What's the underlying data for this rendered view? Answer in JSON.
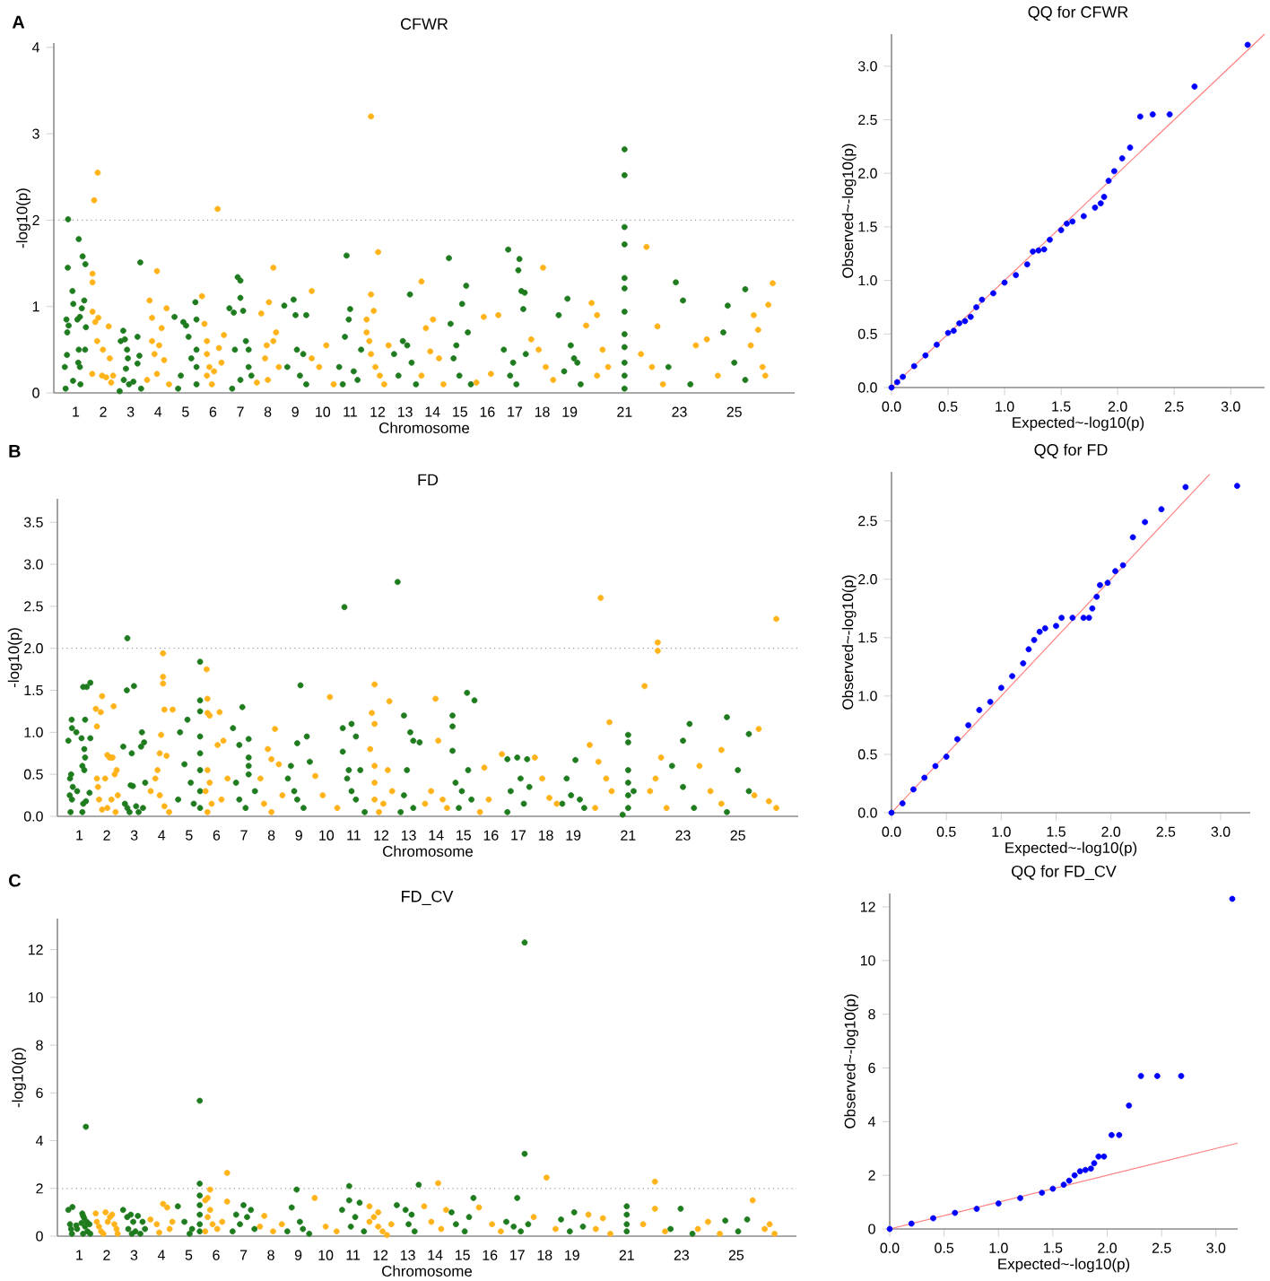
{
  "chart_data": [
    {
      "type": "scatter",
      "title": "CFWR",
      "xlabel": "Chromosome",
      "ylabel": "-log10(p)",
      "annotations": [
        "A"
      ],
      "xlim": [
        0.2,
        27.2
      ],
      "ylim": [
        0,
        4.05
      ],
      "xticks": [
        1,
        2,
        3,
        4,
        5,
        6,
        7,
        8,
        9,
        10,
        11,
        12,
        13,
        14,
        15,
        16,
        17,
        18,
        19,
        21,
        23,
        25
      ],
      "yticks": [
        0,
        1,
        2,
        3,
        4
      ],
      "ref_lines": [
        {
          "axis": "y",
          "value": 2,
          "color": "#999999",
          "line_style": "dotted"
        }
      ],
      "series": [
        {
          "color": "#1e7b1e",
          "x": [
            0.72,
            0.71,
            0.88,
            0.91,
            0.66,
            0.69,
            0.74,
            0.6,
            0.68,
            0.9,
            0.63,
            1.11,
            1.06,
            1.15,
            1.22,
            1.25,
            1.31,
            1.35,
            1.37,
            1.34,
            1.11,
            1.15,
            1.17,
            1.09,
            2.64,
            2.73,
            2.79,
            2.87,
            2.9,
            2.75,
            2.83,
            2.94,
            3.1,
            3.25,
            3.35,
            3.32,
            3.25,
            3.38,
            2.6,
            4.6,
            4.92,
            5.02,
            5.11,
            5.21,
            5.36,
            5.4,
            5.4,
            5.4,
            5.4,
            4.83,
            4.73,
            6.6,
            6.76,
            6.9,
            7.0,
            7.0,
            7.1,
            7.2,
            7.3,
            7.3,
            7.0,
            6.8,
            7.4,
            6.7,
            8.6,
            8.94,
            9.4,
            9.01,
            9.06,
            9.29,
            9.17,
            9.4,
            8.71,
            10.87,
            11.0,
            10.95,
            10.81,
            10.6,
            11.13,
            11.27,
            10.73,
            11.4,
            13.18,
            12.6,
            12.92,
            13.24,
            12.76,
            13.4,
            13.08,
            14.6,
            15.08,
            15.23,
            14.87,
            14.77,
            15.29,
            14.66,
            14.98,
            15.4,
            16.76,
            17.17,
            17.13,
            17.24,
            17.36,
            17.31,
            16.6,
            16.83,
            16.94,
            17.4,
            17.06,
            18.6,
            18.92,
            19.04,
            18.8,
            19.16,
            19.28,
            19.4,
            21.0,
            21.0,
            21.0,
            21.0,
            21.0,
            21.0,
            21.0,
            21.0,
            21.0,
            21.0,
            21.0,
            21.0,
            22.87,
            23.13,
            22.6,
            23.4,
            24.76,
            25.4,
            24.6,
            25.0,
            25.4
          ],
          "values": [
            2.01,
            1.45,
            1.18,
            1.03,
            0.85,
            0.7,
            0.78,
            0.3,
            0.44,
            0.14,
            0.05,
            1.78,
            0.85,
            0.88,
            0.98,
            1.58,
            1.07,
            1.49,
            0.76,
            0.5,
            0.5,
            0.3,
            0.1,
            0.35,
            0.6,
            0.72,
            0.62,
            0.5,
            0.4,
            0.15,
            0.28,
            0.1,
            0.13,
            0.65,
            1.51,
            0.43,
            0.34,
            0.05,
            0.02,
            0.88,
            0.82,
            0.78,
            0.65,
            0.4,
            1.05,
            0.85,
            0.5,
            0.3,
            0.1,
            0.2,
            0.05,
            0.98,
            0.93,
            1.34,
            1.3,
            1.1,
            0.95,
            0.6,
            0.5,
            0.3,
            0.15,
            0.5,
            0.2,
            0.05,
            1.01,
            1.08,
            0.9,
            0.9,
            0.5,
            0.45,
            0.2,
            0.1,
            0.3,
            1.59,
            0.97,
            0.85,
            0.65,
            0.3,
            0.25,
            0.15,
            0.1,
            0.5,
            1.14,
            0.45,
            0.6,
            0.35,
            0.2,
            0.1,
            0.55,
            1.56,
            1.03,
            1.24,
            0.55,
            0.4,
            0.7,
            0.8,
            0.2,
            0.1,
            1.66,
            1.55,
            1.42,
            1.18,
            1.16,
            0.97,
            0.5,
            0.2,
            0.35,
            0.45,
            0.1,
            0.9,
            1.09,
            0.55,
            0.25,
            0.4,
            0.35,
            0.1,
            2.82,
            2.52,
            1.92,
            1.72,
            1.33,
            1.21,
            0.94,
            0.68,
            0.53,
            0.35,
            0.2,
            0.05,
            1.28,
            1.07,
            0.3,
            0.1,
            1.01,
            1.2,
            0.7,
            0.35,
            0.15
          ]
        },
        {
          "color": "#ffb31a",
          "x": [
            1.67,
            1.8,
            1.61,
            1.61,
            1.61,
            1.71,
            1.78,
            1.82,
            1.6,
            1.96,
            1.99,
            2.2,
            2.24,
            2.11,
            2.29,
            2.36,
            3.69,
            3.96,
            3.78,
            4.04,
            4.13,
            4.31,
            3.87,
            4.22,
            3.6,
            3.96,
            4.4,
            3.78,
            5.6,
            6.17,
            5.69,
            5.78,
            5.78,
            5.78,
            5.87,
            5.96,
            6.22,
            6.4,
            6.31,
            6.04,
            7.76,
            8.04,
            8.2,
            8.3,
            7.96,
            7.9,
            8.0,
            7.6,
            8.4,
            8.2,
            9.6,
            10.13,
            9.6,
            9.87,
            10.4,
            11.76,
            12.02,
            11.76,
            11.86,
            11.6,
            11.6,
            11.7,
            11.76,
            11.92,
            12.08,
            12.24,
            12.4,
            13.6,
            14.02,
            13.76,
            13.92,
            14.24,
            13.6,
            14.4,
            15.87,
            16.13,
            15.6,
            16.4,
            18.03,
            17.6,
            18.13,
            17.87,
            18.4,
            19.8,
            20.0,
            19.6,
            20.2,
            20.0,
            20.4,
            21.8,
            22.2,
            21.6,
            22.0,
            22.4,
            24.0,
            23.6,
            24.4,
            26.4,
            26.24,
            25.71,
            25.87,
            25.6,
            26.03,
            26.13
          ],
          "values": [
            2.23,
            2.55,
            1.38,
            1.28,
            0.94,
            0.82,
            0.6,
            0.87,
            0.22,
            0.2,
            0.5,
            0.77,
            0.4,
            0.18,
            0.12,
            0.2,
            1.07,
            1.41,
            0.87,
            0.55,
            0.75,
            0.98,
            0.45,
            0.38,
            0.15,
            0.22,
            0.1,
            0.6,
            1.12,
            2.13,
            0.8,
            0.6,
            0.45,
            0.2,
            0.3,
            0.1,
            0.52,
            0.67,
            0.35,
            0.25,
            0.92,
            1.05,
            1.45,
            0.7,
            0.55,
            0.4,
            0.15,
            0.12,
            0.3,
            0.6,
            1.18,
            0.55,
            0.4,
            0.3,
            0.1,
            3.2,
            1.63,
            1.14,
            0.95,
            0.85,
            0.7,
            0.6,
            0.45,
            0.3,
            0.2,
            0.1,
            0.55,
            1.29,
            0.85,
            0.75,
            0.48,
            0.4,
            0.2,
            0.1,
            0.88,
            0.22,
            0.12,
            0.9,
            1.45,
            0.62,
            0.3,
            0.5,
            0.15,
            1.04,
            0.9,
            0.78,
            0.5,
            0.2,
            0.3,
            1.69,
            0.77,
            0.45,
            0.3,
            0.1,
            0.62,
            0.55,
            0.2,
            1.27,
            1.02,
            0.9,
            0.73,
            0.55,
            0.3,
            0.2
          ]
        }
      ]
    },
    {
      "type": "scatter",
      "title": "QQ for CFWR",
      "xlabel": "Expected~-log10(p)",
      "ylabel": "Observed~-log10(p)",
      "xlim": [
        0,
        3.3
      ],
      "ylim": [
        0,
        3.3
      ],
      "xticks": [
        {
          "value": 0,
          "label": "0.0"
        },
        0.5,
        {
          "value": 1,
          "label": "1.0"
        },
        1.5,
        {
          "value": 2,
          "label": "2.0"
        },
        2.5,
        {
          "value": 3,
          "label": "3.0"
        }
      ],
      "yticks": [
        {
          "value": 0,
          "label": "0.0"
        },
        0.5,
        {
          "value": 1,
          "label": "1.0"
        },
        1.5,
        {
          "value": 2,
          "label": "2.0"
        },
        2.5,
        {
          "value": 3,
          "label": "3.0"
        }
      ],
      "series": [
        {
          "type": "line",
          "color": "#ff8080",
          "x": [
            0,
            3.3
          ],
          "values": [
            0,
            3.3
          ]
        },
        {
          "color": "#0000ff",
          "x": [
            0,
            0.05,
            0.1,
            0.2,
            0.3,
            0.4,
            0.5,
            0.55,
            0.6,
            0.65,
            0.7,
            0.75,
            0.8,
            0.9,
            1.0,
            1.1,
            1.2,
            1.25,
            1.3,
            1.35,
            1.4,
            1.5,
            1.55,
            1.6,
            1.7,
            1.8,
            1.85,
            1.88,
            1.92,
            1.97,
            2.04,
            2.11,
            2.2,
            2.31,
            2.46,
            2.68,
            3.15
          ],
          "values": [
            0,
            0.05,
            0.1,
            0.2,
            0.3,
            0.4,
            0.51,
            0.53,
            0.6,
            0.62,
            0.66,
            0.75,
            0.82,
            0.88,
            0.98,
            1.05,
            1.15,
            1.27,
            1.28,
            1.29,
            1.38,
            1.47,
            1.53,
            1.55,
            1.6,
            1.68,
            1.72,
            1.78,
            1.93,
            2.02,
            2.14,
            2.24,
            2.53,
            2.55,
            2.55,
            2.81,
            3.2
          ]
        }
      ]
    },
    {
      "type": "scatter",
      "title": "FD",
      "xlabel": "Chromosome",
      "ylabel": "-log10(p)",
      "annotations": [
        "B"
      ],
      "xlim": [
        0.2,
        27.2
      ],
      "ylim": [
        0,
        3.78
      ],
      "xticks": [
        1,
        2,
        3,
        4,
        5,
        6,
        7,
        8,
        9,
        10,
        11,
        12,
        13,
        14,
        15,
        16,
        17,
        18,
        19,
        21,
        23,
        25
      ],
      "yticks": [
        {
          "value": 0,
          "label": "0.0"
        },
        0.5,
        {
          "value": 1,
          "label": "1.0"
        },
        1.5,
        {
          "value": 2,
          "label": "2.0"
        },
        2.5,
        {
          "value": 3,
          "label": "3.0"
        },
        3.5
      ],
      "ref_lines": [
        {
          "axis": "y",
          "value": 2,
          "color": "#999999",
          "line_style": "dotted"
        }
      ],
      "series": [
        {
          "color": "#1e7b1e",
          "x": [
            0.6,
            0.65,
            0.66,
            0.7,
            0.72,
            0.73,
            0.76,
            0.73,
            0.68,
            0.89,
            0.92,
            1.08,
            1.14,
            1.21,
            1.18,
            1.21,
            1.11,
            1.18,
            1.27,
            1.4,
            1.4,
            1.14,
            1.24,
            1.37,
            1.11,
            2.6,
            2.75,
            2.73,
            2.91,
            2.99,
            2.87,
            2.95,
            2.75,
            2.83,
            2.66,
            3.28,
            3.25,
            3.36,
            3.4,
            3.16,
            3.07,
            3.32,
            4.67,
            4.94,
            5.4,
            5.4,
            5.4,
            5.4,
            5.4,
            5.4,
            5.4,
            5.4,
            4.83,
            5.06,
            5.17,
            4.6,
            6.6,
            6.94,
            6.83,
            7.17,
            7.17,
            7.17,
            7.17,
            6.83,
            7.06,
            6.71,
            7.4,
            8.94,
            9.06,
            9.29,
            9.4,
            8.71,
            8.83,
            8.94,
            9.17,
            8.6,
            10.66,
            10.6,
            10.92,
            11.08,
            10.6,
            10.82,
            11.24,
            10.76,
            10.92,
            11.08,
            11.4,
            12.6,
            12.83,
            13.06,
            13.17,
            13.4,
            12.94,
            12.83,
            13.17,
            12.71,
            14.6,
            14.6,
            15.13,
            15.4,
            14.6,
            14.71,
            14.94,
            14.83,
            15.17,
            15.29,
            16.6,
            16.96,
            17.32,
            16.72,
            17.08,
            17.2,
            16.6,
            17.4,
            19.08,
            18.76,
            18.92,
            19.24,
            19.4,
            18.6,
            21.0,
            21.0,
            21.0,
            21.0,
            21.0,
            21.0,
            21.2,
            20.8,
            23.24,
            23.0,
            22.6,
            23.0,
            23.4,
            24.6,
            25.4,
            25.0,
            25.4,
            24.6
          ],
          "values": [
            0.9,
            0.25,
            0.45,
            0.5,
            1.15,
            1.05,
            0.35,
            0.2,
            0.05,
            1.0,
            0.3,
            0.93,
            1.54,
            1.15,
            0.8,
            0.7,
            0.6,
            0.55,
            1.54,
            1.59,
            0.93,
            0.15,
            0.18,
            0.28,
            0.05,
            0.83,
            2.12,
            1.5,
            0.75,
            1.55,
            0.37,
            0.36,
            0.1,
            0.05,
            0.15,
            1.0,
            0.83,
            0.88,
            0.4,
            0.05,
            0.12,
            0.1,
            1.0,
            1.15,
            1.84,
            1.38,
            1.25,
            0.95,
            0.75,
            0.55,
            0.3,
            0.1,
            0.62,
            0.4,
            0.15,
            0.2,
            1.05,
            1.3,
            0.85,
            0.92,
            0.7,
            0.6,
            0.5,
            0.2,
            0.1,
            0.4,
            0.3,
            0.87,
            1.56,
            0.95,
            0.65,
            0.6,
            0.3,
            0.2,
            0.1,
            0.45,
            2.49,
            1.05,
            1.1,
            0.95,
            0.77,
            0.55,
            0.55,
            0.45,
            0.3,
            0.2,
            0.05,
            2.79,
            1.2,
            1.0,
            0.9,
            0.88,
            0.55,
            0.25,
            0.1,
            0.05,
            1.2,
            1.07,
            1.47,
            1.38,
            0.78,
            0.4,
            0.3,
            0.1,
            0.55,
            0.2,
            0.68,
            0.7,
            0.68,
            0.3,
            0.45,
            0.15,
            0.05,
            0.35,
            0.67,
            0.45,
            0.25,
            0.2,
            0.1,
            0.15,
            0.97,
            0.88,
            0.55,
            0.4,
            0.25,
            0.1,
            0.3,
            0.02,
            1.1,
            0.9,
            0.6,
            0.35,
            0.1,
            1.18,
            0.98,
            0.55,
            0.3,
            0.05
          ]
        },
        {
          "color": "#ffb31a",
          "x": [
            1.6,
            1.64,
            1.78,
            1.83,
            1.64,
            1.68,
            1.72,
            1.94,
            2.02,
            2.1,
            2.17,
            2.21,
            2.25,
            2.29,
            2.36,
            2.17,
            2.32,
            2.02,
            1.83,
            2.4,
            4.05,
            4.05,
            4.05,
            4.1,
            4.4,
            3.98,
            3.93,
            4.18,
            3.85,
            3.77,
            3.93,
            4.1,
            4.27,
            3.6,
            5.64,
            5.67,
            5.67,
            5.75,
            6.11,
            5.67,
            5.75,
            5.6,
            5.82,
            5.67,
            6.04,
            6.25,
            6.4,
            6.18,
            8.13,
            7.87,
            8.0,
            8.27,
            7.73,
            8.0,
            8.4,
            7.6,
            10.13,
            9.6,
            9.87,
            10.4,
            11.76,
            11.66,
            11.76,
            12.3,
            11.6,
            11.76,
            11.76,
            11.76,
            11.92,
            12.08,
            12.24,
            12.4,
            13.98,
            14.08,
            13.82,
            14.24,
            14.4,
            13.6,
            15.76,
            16.4,
            15.92,
            15.6,
            17.6,
            17.87,
            18.13,
            18.4,
            20.0,
            20.32,
            19.6,
            19.92,
            20.2,
            20.4,
            19.8,
            22.08,
            22.08,
            21.6,
            22.2,
            22.0,
            21.8,
            22.4,
            24.4,
            23.6,
            24.0,
            24.4,
            26.4,
            25.76,
            25.6,
            26.13,
            26.4
          ],
          "values": [
            1.28,
            1.07,
            1.24,
            1.43,
            0.45,
            0.35,
            0.2,
            0.45,
            0.73,
            0.7,
            0.7,
            0.7,
            1.31,
            0.5,
            0.55,
            0.2,
            0.05,
            0.1,
            0.08,
            0.25,
            1.94,
            1.66,
            1.58,
            1.27,
            1.27,
            0.97,
            0.75,
            0.72,
            0.55,
            0.45,
            0.25,
            0.12,
            0.05,
            0.3,
            1.75,
            1.4,
            1.23,
            1.2,
            1.24,
            0.55,
            0.4,
            0.3,
            0.15,
            0.05,
            0.85,
            0.9,
            0.45,
            0.2,
            1.04,
            0.8,
            0.68,
            0.62,
            0.15,
            0.05,
            0.25,
            0.45,
            1.42,
            0.48,
            0.25,
            0.1,
            1.57,
            1.23,
            1.1,
            1.37,
            0.8,
            0.6,
            0.4,
            0.2,
            0.05,
            0.15,
            0.55,
            0.3,
            1.4,
            0.9,
            0.3,
            0.2,
            0.1,
            0.15,
            0.58,
            0.74,
            0.2,
            0.05,
            0.7,
            0.45,
            0.22,
            0.15,
            2.6,
            1.12,
            0.85,
            0.65,
            0.45,
            0.3,
            0.1,
            2.07,
            1.97,
            1.55,
            0.7,
            0.45,
            0.3,
            0.1,
            0.79,
            0.6,
            0.3,
            0.15,
            2.35,
            1.04,
            0.25,
            0.18,
            0.1
          ]
        }
      ]
    },
    {
      "type": "scatter",
      "title": "QQ for FD",
      "xlabel": "Expected~-log10(p)",
      "ylabel": "Observed~-log10(p)",
      "xlim": [
        0,
        3.27
      ],
      "ylim": [
        0,
        2.92
      ],
      "xticks": [
        {
          "value": 0,
          "label": "0.0"
        },
        0.5,
        {
          "value": 1,
          "label": "1.0"
        },
        1.5,
        {
          "value": 2,
          "label": "2.0"
        },
        2.5,
        {
          "value": 3,
          "label": "3.0"
        }
      ],
      "yticks": [
        {
          "value": 0,
          "label": "0.0"
        },
        0.5,
        {
          "value": 1,
          "label": "1.0"
        },
        1.5,
        {
          "value": 2,
          "label": "2.0"
        },
        2.5
      ],
      "series": [
        {
          "type": "line",
          "color": "#ff8080",
          "x": [
            0,
            2.9
          ],
          "values": [
            0,
            2.9
          ]
        },
        {
          "color": "#0000ff",
          "x": [
            0,
            0.1,
            0.2,
            0.3,
            0.4,
            0.5,
            0.6,
            0.7,
            0.8,
            0.9,
            1.0,
            1.1,
            1.2,
            1.25,
            1.3,
            1.35,
            1.4,
            1.5,
            1.55,
            1.65,
            1.75,
            1.8,
            1.83,
            1.87,
            1.9,
            1.97,
            2.04,
            2.11,
            2.2,
            2.31,
            2.46,
            2.68,
            3.15
          ],
          "values": [
            0,
            0.08,
            0.2,
            0.3,
            0.4,
            0.48,
            0.63,
            0.75,
            0.88,
            0.95,
            1.07,
            1.17,
            1.28,
            1.4,
            1.48,
            1.55,
            1.58,
            1.6,
            1.67,
            1.67,
            1.67,
            1.67,
            1.75,
            1.85,
            1.95,
            1.97,
            2.07,
            2.12,
            2.36,
            2.49,
            2.6,
            2.79,
            2.8
          ]
        }
      ]
    },
    {
      "type": "scatter",
      "title": "FD_CV",
      "xlabel": "Chromosome",
      "ylabel": "-log10(p)",
      "annotations": [
        "C"
      ],
      "xlim": [
        0.2,
        27.2
      ],
      "ylim": [
        0,
        13.3
      ],
      "xticks": [
        1,
        2,
        3,
        4,
        5,
        6,
        7,
        8,
        9,
        10,
        11,
        12,
        13,
        14,
        15,
        16,
        17,
        18,
        19,
        21,
        23,
        25
      ],
      "yticks": [
        0,
        2,
        4,
        6,
        8,
        10,
        12
      ],
      "ref_lines": [
        {
          "axis": "y",
          "value": 2,
          "color": "#999999",
          "line_style": "dotted"
        }
      ],
      "series": [
        {
          "color": "#1e7b1e",
          "x": [
            0.6,
            0.75,
            0.66,
            0.7,
            0.73,
            0.89,
            0.92,
            1.11,
            1.14,
            1.18,
            1.08,
            1.24,
            1.21,
            1.27,
            1.3,
            1.37,
            1.4,
            1.14,
            2.6,
            2.75,
            2.88,
            2.97,
            3.14,
            2.79,
            2.92,
            3.05,
            3.31,
            3.4,
            3.23,
            4.6,
            5.4,
            5.4,
            5.4,
            5.4,
            5.4,
            5.4,
            5.4,
            4.84,
            5.12,
            5.03,
            7.0,
            7.27,
            7.13,
            6.87,
            6.6,
            7.4,
            6.73,
            8.94,
            8.76,
            9.06,
            9.17,
            8.6,
            9.4,
            10.86,
            10.6,
            10.86,
            11.24,
            11.08,
            10.92,
            11.4,
            12.6,
            12.92,
            13.14,
            13.4,
            13.03,
            13.25,
            14.6,
            15.4,
            15.24,
            14.76,
            15.08,
            17.27,
            17.27,
            17.0,
            16.6,
            16.87,
            17.13,
            17.4,
            18.6,
            19.08,
            19.4,
            18.92,
            21.0,
            21.0,
            21.0,
            21.0,
            22.97,
            22.6,
            23.4,
            24.6,
            25.4,
            25.07
          ],
          "values": [
            1.1,
            1.22,
            0.5,
            0.3,
            0.1,
            0.45,
            0.3,
            0.95,
            0.85,
            0.75,
            0.55,
            4.58,
            0.4,
            0.6,
            0.2,
            0.5,
            0.1,
            0.1,
            1.1,
            0.8,
            0.9,
            0.6,
            0.85,
            0.3,
            0.1,
            0.2,
            0.6,
            0.3,
            0.1,
            1.25,
            5.67,
            2.2,
            1.7,
            1.3,
            0.9,
            0.5,
            0.2,
            0.6,
            0.3,
            0.1,
            1.3,
            1.1,
            0.8,
            0.5,
            0.2,
            0.3,
            0.9,
            1.95,
            1.2,
            0.6,
            0.3,
            0.2,
            0.1,
            2.1,
            1.1,
            1.5,
            1.4,
            0.8,
            0.4,
            0.2,
            1.3,
            1.1,
            0.9,
            2.15,
            0.5,
            0.2,
            1.0,
            1.6,
            0.8,
            0.5,
            0.2,
            12.3,
            3.45,
            1.6,
            0.6,
            0.4,
            0.2,
            0.5,
            0.7,
            1.0,
            0.4,
            0.2,
            1.25,
            0.9,
            0.5,
            0.2,
            1.15,
            0.3,
            0.1,
            0.65,
            0.7,
            0.2
          ]
        },
        {
          "color": "#ffb31a",
          "x": [
            1.6,
            1.64,
            1.72,
            1.8,
            1.96,
            2.04,
            2.12,
            2.2,
            2.28,
            2.36,
            2.4,
            1.88,
            3.6,
            4.06,
            4.21,
            3.83,
            4.3,
            3.92,
            4.4,
            6.4,
            6.4,
            5.78,
            5.69,
            5.6,
            5.78,
            5.69,
            5.87,
            5.6,
            6.04,
            6.22,
            7.76,
            7.6,
            8.08,
            8.4,
            9.6,
            10.0,
            10.4,
            11.6,
            11.92,
            11.76,
            11.6,
            11.92,
            12.08,
            12.24,
            12.4,
            14.11,
            13.6,
            14.4,
            13.86,
            14.22,
            15.6,
            16.08,
            16.4,
            18.07,
            17.6,
            18.4,
            19.6,
            20.13,
            19.87,
            20.4,
            22.03,
            22.03,
            21.6,
            22.4,
            23.97,
            23.6,
            24.4,
            25.6,
            26.22,
            26.04,
            26.4
          ],
          "values": [
            0.95,
            0.6,
            0.4,
            0.2,
            1.0,
            0.6,
            0.8,
            0.9,
            0.5,
            0.3,
            0.1,
            0.1,
            0.7,
            1.35,
            1.2,
            0.5,
            0.3,
            0.15,
            0.6,
            2.65,
            1.45,
            1.95,
            1.6,
            1.5,
            1.1,
            0.8,
            0.5,
            0.2,
            0.3,
            0.6,
            0.85,
            0.4,
            0.2,
            0.5,
            1.6,
            0.4,
            0.2,
            1.25,
            1.0,
            0.8,
            0.6,
            0.4,
            0.2,
            0.05,
            0.5,
            2.22,
            1.25,
            1.1,
            0.6,
            0.3,
            1.2,
            0.5,
            0.2,
            2.45,
            0.8,
            0.3,
            0.9,
            0.75,
            0.3,
            0.1,
            2.28,
            1.15,
            0.5,
            0.2,
            0.6,
            0.3,
            0.1,
            1.5,
            0.5,
            0.3,
            0.1
          ]
        }
      ]
    },
    {
      "type": "scatter",
      "title": "QQ for FD_CV",
      "xlabel": "Expected~-log10(p)",
      "ylabel": "Observed~-log10(p)",
      "xlim": [
        0,
        3.2
      ],
      "ylim": [
        0,
        12.5
      ],
      "xticks": [
        {
          "value": 0,
          "label": "0.0"
        },
        0.5,
        {
          "value": 1,
          "label": "1.0"
        },
        1.5,
        {
          "value": 2,
          "label": "2.0"
        },
        2.5,
        {
          "value": 3,
          "label": "3.0"
        }
      ],
      "yticks": [
        0,
        2,
        4,
        6,
        8,
        10,
        12
      ],
      "series": [
        {
          "type": "line",
          "color": "#ff8080",
          "x": [
            0,
            3.2
          ],
          "values": [
            0,
            3.2
          ]
        },
        {
          "color": "#0000ff",
          "x": [
            0,
            0.2,
            0.4,
            0.6,
            0.8,
            1.0,
            1.2,
            1.4,
            1.5,
            1.6,
            1.65,
            1.7,
            1.75,
            1.8,
            1.85,
            1.88,
            1.92,
            1.97,
            2.04,
            2.11,
            2.2,
            2.31,
            2.46,
            2.68,
            3.15
          ],
          "values": [
            0,
            0.2,
            0.4,
            0.6,
            0.75,
            0.95,
            1.15,
            1.35,
            1.5,
            1.65,
            1.8,
            2.0,
            2.15,
            2.2,
            2.25,
            2.45,
            2.7,
            2.7,
            3.5,
            3.5,
            4.6,
            5.7,
            5.7,
            5.7,
            12.3
          ]
        }
      ]
    }
  ]
}
